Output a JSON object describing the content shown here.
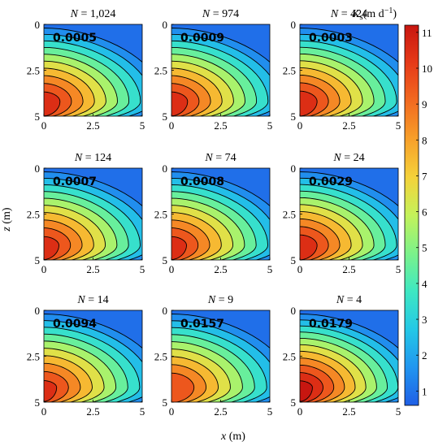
{
  "chart_data": {
    "type": "heatmap",
    "description_free": true,
    "panel_title_prefix": "N",
    "panels": [
      {
        "n": "1,024",
        "error": "0.0005",
        "peak": 10.5
      },
      {
        "n": "974",
        "error": "0.0009",
        "peak": 10.5
      },
      {
        "n": "424",
        "error": "0.0003",
        "peak": 10.6
      },
      {
        "n": "124",
        "error": "0.0007",
        "peak": 10.4
      },
      {
        "n": "74",
        "error": "0.0008",
        "peak": 10.4
      },
      {
        "n": "24",
        "error": "0.0029",
        "peak": 10.6
      },
      {
        "n": "14",
        "error": "0.0094",
        "peak": 10.2
      },
      {
        "n": "9",
        "error": "0.0157",
        "peak": 10.0
      },
      {
        "n": "4",
        "error": "0.0179",
        "peak": 11.2
      }
    ],
    "x_ticks": [
      "0",
      "2.5",
      "5"
    ],
    "z_ticks": [
      "0",
      "2.5",
      "5"
    ],
    "xlim": [
      0,
      5
    ],
    "zlim": [
      0,
      5
    ],
    "xlabel_var": "x",
    "xlabel_unit": "(m)",
    "ylabel_var": "z",
    "ylabel_unit": "(m)",
    "colorbar": {
      "label_var": "K",
      "label_sub": "s",
      "label_unit": "(m d",
      "label_exp": "−1",
      "label_close": ")",
      "range": [
        0.6,
        11.2
      ],
      "ticks": [
        "1",
        "2",
        "3",
        "4",
        "5",
        "6",
        "7",
        "8",
        "9",
        "10",
        "11"
      ]
    },
    "colormap": [
      "#1f5fe6",
      "#2196f0",
      "#24c8e6",
      "#3ee8c2",
      "#7cf28a",
      "#c4f25a",
      "#f5d23a",
      "#f7a02a",
      "#f26a20",
      "#e63a18",
      "#c81610"
    ],
    "contour_color": "#000000"
  }
}
